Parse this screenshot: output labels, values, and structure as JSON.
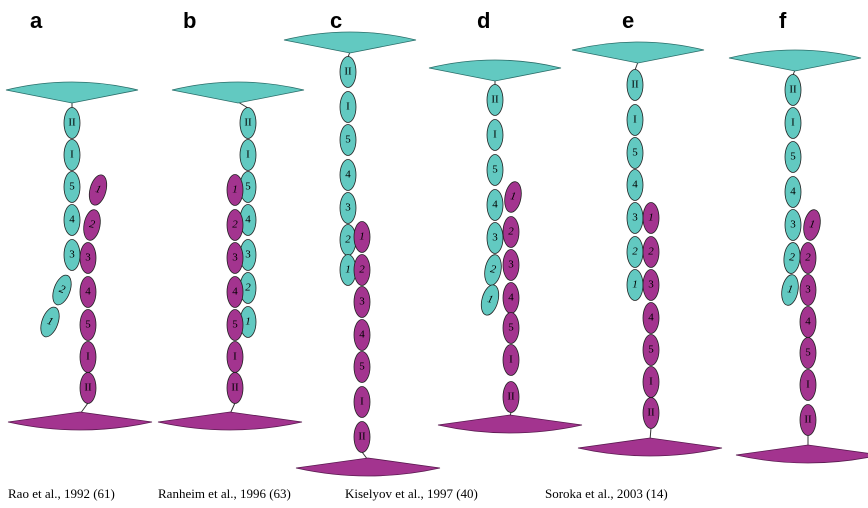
{
  "panels": [
    {
      "letter": "a",
      "cyan": [
        "II",
        "I",
        "5",
        "4",
        "3",
        "2",
        "1"
      ],
      "magenta": [
        "1",
        "2",
        "3",
        "4",
        "5",
        "I",
        "II"
      ]
    },
    {
      "letter": "b",
      "cyan": [
        "II",
        "I",
        "5",
        "4",
        "3",
        "2",
        "1"
      ],
      "magenta": [
        "1",
        "2",
        "3",
        "4",
        "5",
        "I",
        "II"
      ]
    },
    {
      "letter": "c",
      "cyan": [
        "II",
        "I",
        "5",
        "4",
        "3",
        "2",
        "1"
      ],
      "magenta": [
        "1",
        "2",
        "3",
        "4",
        "5",
        "I",
        "II"
      ]
    },
    {
      "letter": "d",
      "cyan": [
        "II",
        "I",
        "5",
        "4",
        "3",
        "2",
        "1"
      ],
      "magenta": [
        "1",
        "2",
        "3",
        "4",
        "5",
        "I",
        "II"
      ]
    },
    {
      "letter": "e",
      "cyan": [
        "II",
        "I",
        "5",
        "4",
        "3",
        "2",
        "1"
      ],
      "magenta": [
        "1",
        "2",
        "3",
        "4",
        "5",
        "I",
        "II"
      ]
    },
    {
      "letter": "f",
      "cyan": [
        "II",
        "I",
        "5",
        "4",
        "3",
        "2",
        "1"
      ],
      "magenta": [
        "1",
        "2",
        "3",
        "4",
        "5",
        "I",
        "II"
      ]
    }
  ],
  "captions": [
    "Rao et al., 1992 (61)",
    "Ranheim et al., 1996 (63)",
    "Kiselyov et al., 1997 (40)",
    "Soroka et al., 2003 (14)"
  ]
}
